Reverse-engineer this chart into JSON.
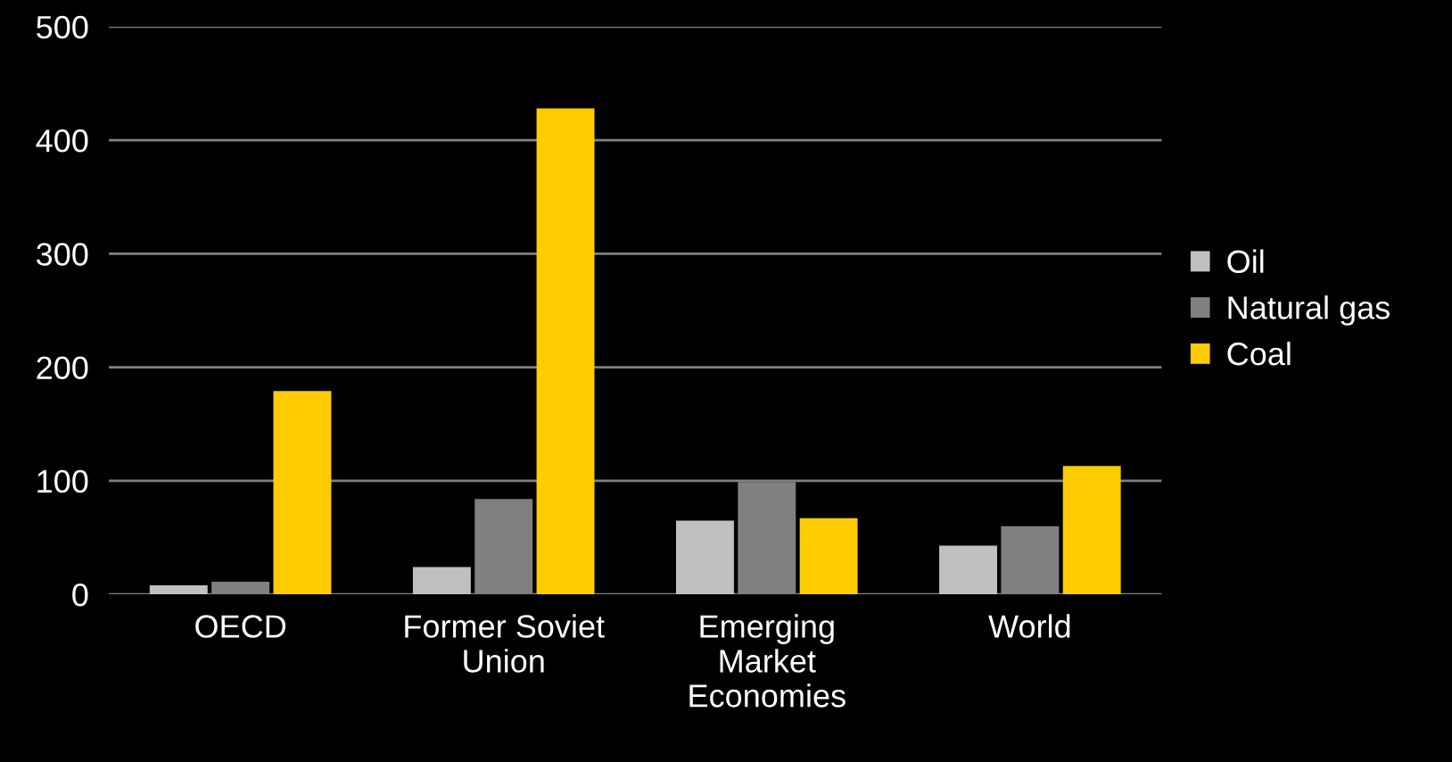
{
  "chart_data": {
    "type": "bar",
    "categories": [
      "OECD",
      "Former Soviet\nUnion",
      "Emerging\nMarket\nEconomies",
      "World"
    ],
    "series": [
      {
        "name": "Oil",
        "color": "#c0c0c0",
        "values": [
          8,
          24,
          65,
          43
        ]
      },
      {
        "name": "Natural gas",
        "color": "#808080",
        "values": [
          11,
          84,
          99,
          60
        ]
      },
      {
        "name": "Coal",
        "color": "#ffcc00",
        "values": [
          179,
          428,
          67,
          113
        ]
      }
    ],
    "ylim": [
      0,
      500
    ],
    "yticks": [
      0,
      100,
      200,
      300,
      400,
      500
    ],
    "grid": "y",
    "legend": "right"
  }
}
